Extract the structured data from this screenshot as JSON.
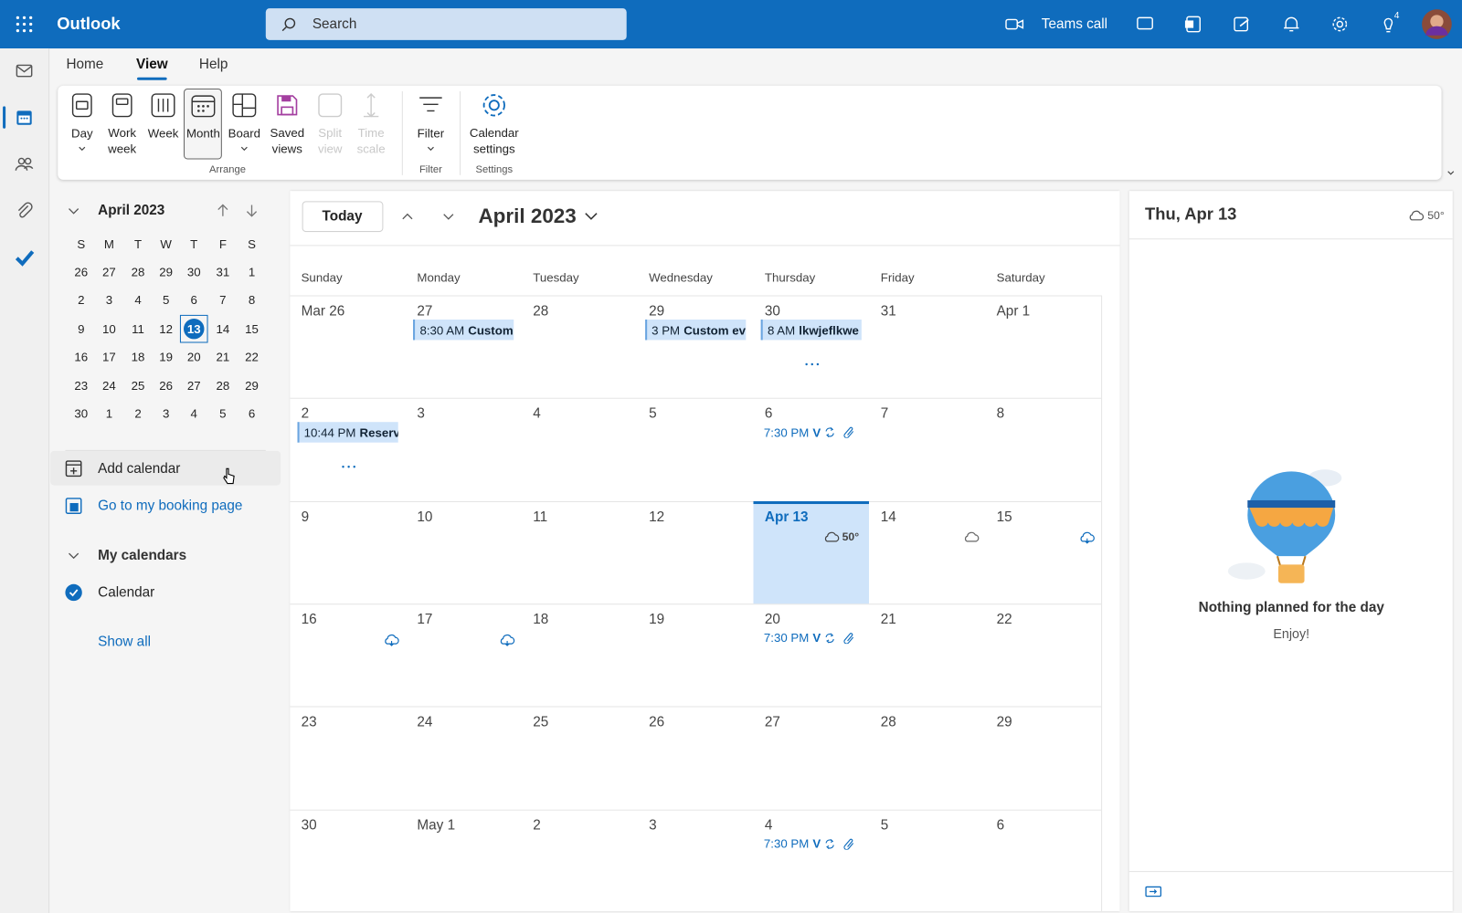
{
  "header": {
    "app_name": "Outlook",
    "search_placeholder": "Search",
    "teams_call": "Teams call",
    "badge": "4"
  },
  "ribbon": {
    "tabs": [
      "Home",
      "View",
      "Help"
    ],
    "active_tab": "View",
    "buttons": [
      {
        "label": "Day"
      },
      {
        "label": "Work week"
      },
      {
        "label": "Week"
      },
      {
        "label": "Month",
        "selected": true
      },
      {
        "label": "Board"
      },
      {
        "label": "Saved views"
      },
      {
        "label": "Split view",
        "disabled": true
      },
      {
        "label": "Time scale",
        "disabled": true
      },
      {
        "label": "Filter"
      },
      {
        "label": "Calendar settings"
      }
    ],
    "groups": [
      "Arrange",
      "Filter",
      "Settings"
    ]
  },
  "mini_calendar": {
    "title": "April 2023",
    "weekdays": [
      "S",
      "M",
      "T",
      "W",
      "T",
      "F",
      "S"
    ],
    "weeks": [
      [
        "26",
        "27",
        "28",
        "29",
        "30",
        "31",
        "1"
      ],
      [
        "2",
        "3",
        "4",
        "5",
        "6",
        "7",
        "8"
      ],
      [
        "9",
        "10",
        "11",
        "12",
        "13",
        "14",
        "15"
      ],
      [
        "16",
        "17",
        "18",
        "19",
        "20",
        "21",
        "22"
      ],
      [
        "23",
        "24",
        "25",
        "26",
        "27",
        "28",
        "29"
      ],
      [
        "30",
        "1",
        "2",
        "3",
        "4",
        "5",
        "6"
      ]
    ],
    "selected": "13"
  },
  "navigation": {
    "add_calendar": "Add calendar",
    "booking_page": "Go to my booking page",
    "my_calendars": "My calendars",
    "calendar": "Calendar",
    "show_all": "Show all"
  },
  "calendar": {
    "today_button": "Today",
    "title": "April 2023",
    "weekdays": [
      "Sunday",
      "Monday",
      "Tuesday",
      "Wednesday",
      "Thursday",
      "Friday",
      "Saturday"
    ],
    "weeks": [
      [
        {
          "label": "Mar 26"
        },
        {
          "label": "27",
          "events": [
            {
              "time": "8:30 AM",
              "title": "Custom"
            }
          ]
        },
        {
          "label": "28"
        },
        {
          "label": "29",
          "events": [
            {
              "time": "3 PM",
              "title": "Custom ev"
            }
          ]
        },
        {
          "label": "30",
          "events": [
            {
              "time": "8 AM",
              "title": "lkwjeflkwe"
            }
          ],
          "more": true
        },
        {
          "label": "31"
        },
        {
          "label": "Apr 1"
        }
      ],
      [
        {
          "label": "2",
          "events": [
            {
              "time": "10:44 PM",
              "title": "Reserv"
            }
          ],
          "more": true
        },
        {
          "label": "3"
        },
        {
          "label": "4"
        },
        {
          "label": "5"
        },
        {
          "label": "6",
          "events": [
            {
              "time": "7:30 PM",
              "title": "V",
              "recurring": true
            }
          ]
        },
        {
          "label": "7"
        },
        {
          "label": "8"
        }
      ],
      [
        {
          "label": "9"
        },
        {
          "label": "10"
        },
        {
          "label": "11"
        },
        {
          "label": "12"
        },
        {
          "label": "Apr 13",
          "today": true,
          "weather": "50°"
        },
        {
          "label": "14",
          "weather_icon": "cloud"
        },
        {
          "label": "15",
          "weather_icon": "rain"
        }
      ],
      [
        {
          "label": "16",
          "weather_icon": "rain"
        },
        {
          "label": "17",
          "weather_icon": "rain"
        },
        {
          "label": "18"
        },
        {
          "label": "19"
        },
        {
          "label": "20",
          "events": [
            {
              "time": "7:30 PM",
              "title": "V",
              "recurring": true
            }
          ]
        },
        {
          "label": "21"
        },
        {
          "label": "22"
        }
      ],
      [
        {
          "label": "23"
        },
        {
          "label": "24"
        },
        {
          "label": "25"
        },
        {
          "label": "26"
        },
        {
          "label": "27"
        },
        {
          "label": "28"
        },
        {
          "label": "29"
        }
      ],
      [
        {
          "label": "30"
        },
        {
          "label": "May 1"
        },
        {
          "label": "2"
        },
        {
          "label": "3"
        },
        {
          "label": "4",
          "events": [
            {
              "time": "7:30 PM",
              "title": "V",
              "recurring": true
            }
          ]
        },
        {
          "label": "5"
        },
        {
          "label": "6"
        }
      ]
    ]
  },
  "day_pane": {
    "date": "Thu, Apr 13",
    "weather": "50°",
    "empty_title": "Nothing planned for the day",
    "empty_subtitle": "Enjoy!"
  }
}
